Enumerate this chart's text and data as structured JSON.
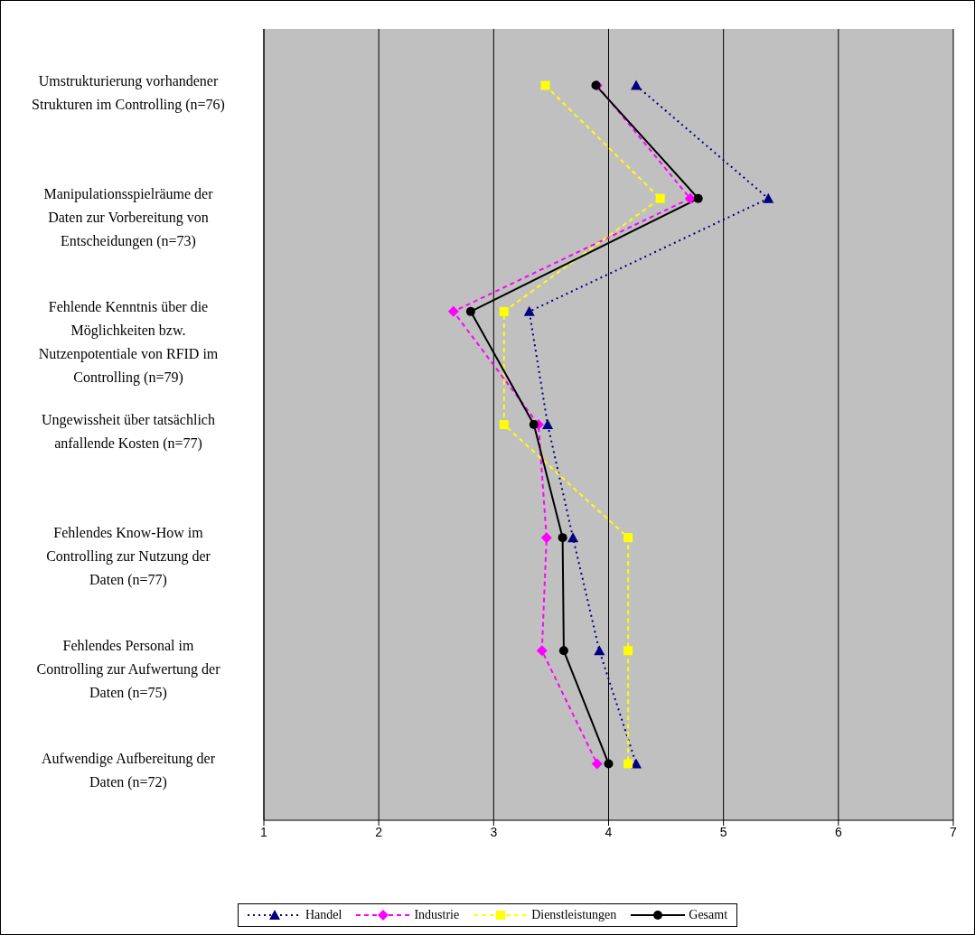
{
  "chart_data": {
    "type": "line",
    "orientation": "horizontal",
    "categories": [
      "Umstrukturierung vorhandener Strukturen im Controlling (n=76)",
      "Manipulationsspielräume der Daten zur Vorbereitung von Entscheidungen (n=73)",
      "Fehlende Kenntnis über die Möglichkeiten bzw. Nutzenpotentiale von RFID im Controlling (n=79)",
      "Ungewissheit über tatsächlich anfallende Kosten (n=77)",
      "Fehlendes Know-How im Controlling zur Nutzung der Daten (n=77)",
      "Fehlendes Personal im Controlling zur Aufwertung der Daten (n=75)",
      "Aufwendige Aufbereitung der Daten (n=72)"
    ],
    "series": [
      {
        "name": "Handel",
        "color": "#000080",
        "marker": "triangle",
        "line_style": "dotted",
        "values": [
          4.24,
          5.39,
          3.31,
          3.47,
          3.69,
          3.92,
          4.24
        ]
      },
      {
        "name": "Industrie",
        "color": "#ff00ff",
        "marker": "diamond",
        "line_style": "dashed",
        "values": [
          3.9,
          4.71,
          2.65,
          3.39,
          3.46,
          3.42,
          3.9
        ]
      },
      {
        "name": "Dienstleistungen",
        "color": "#ffff00",
        "marker": "square",
        "line_style": "dashed",
        "values": [
          3.45,
          4.45,
          3.09,
          3.09,
          4.17,
          4.17,
          4.17
        ]
      },
      {
        "name": "Gesamt",
        "color": "#000000",
        "marker": "circle",
        "line_style": "solid",
        "values": [
          3.89,
          4.78,
          2.8,
          3.35,
          3.6,
          3.61,
          4.0
        ]
      }
    ],
    "xlim": [
      1,
      7
    ],
    "xticks": [
      1,
      2,
      3,
      4,
      5,
      6,
      7
    ],
    "grid": "x",
    "legend": "bottom"
  }
}
